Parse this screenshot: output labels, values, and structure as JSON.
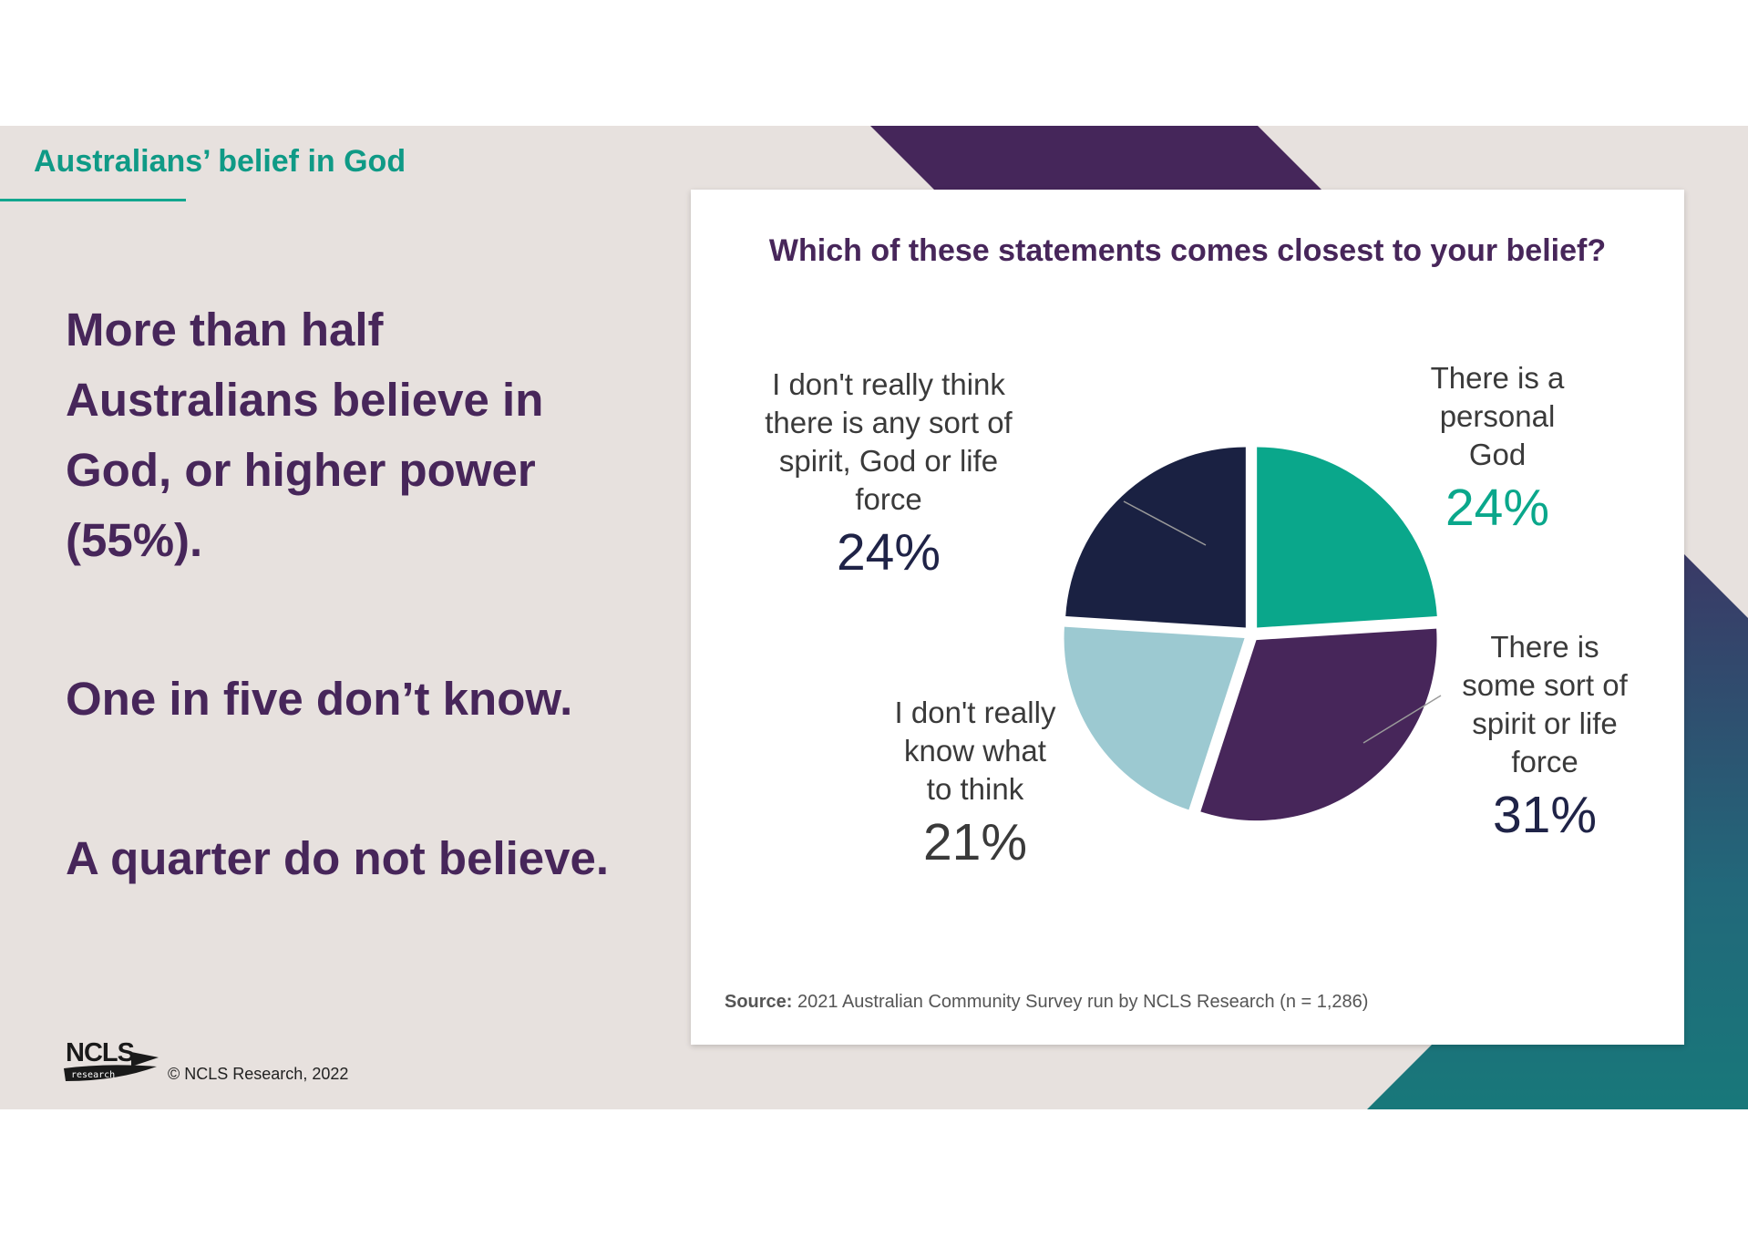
{
  "section_title": "Australians’ belief in God",
  "headlines": {
    "main_lines": [
      "More than half",
      "Australians believe in",
      "God, or higher power",
      "(55%)."
    ],
    "dont_know": "One in five don’t know.",
    "not_believe": "A quarter do not believe."
  },
  "footer": {
    "logo_text": "NCLS",
    "logo_subtext": "research",
    "copyright": "© NCLS Research, 2022"
  },
  "chart_data": {
    "type": "pie",
    "title": "Which of these statements comes closest to your belief?",
    "slices": [
      {
        "label_lines": [
          "There is a",
          "personal",
          "God"
        ],
        "value": 24,
        "value_label": "24%",
        "color": "#0aa78b",
        "pct_color": "#0aa78b"
      },
      {
        "label_lines": [
          "There is",
          "some sort of",
          "spirit or life",
          "force"
        ],
        "value": 31,
        "value_label": "31%",
        "color": "#47265a",
        "pct_color": "#1f2347"
      },
      {
        "label_lines": [
          "I don't really",
          "know what",
          "to think"
        ],
        "value": 21,
        "value_label": "21%",
        "color": "#9cc9d1",
        "pct_color": "#3a3a3a"
      },
      {
        "label_lines": [
          "I don't really think",
          "there is any sort of",
          "spirit, God or life",
          "force"
        ],
        "value": 24,
        "value_label": "24%",
        "color": "#1a2142",
        "pct_color": "#1f2347"
      }
    ],
    "source_bold": "Source:",
    "source_text": " 2021 Australian Community Survey run by NCLS Research (n = 1,286)"
  },
  "colors": {
    "background": "#e7e1de",
    "headline": "#47265a",
    "accent_teal": "#0f9a86",
    "deco_purple": "#45265a",
    "deco_navy": "#3a3a66",
    "deco_teal": "#187a78"
  }
}
